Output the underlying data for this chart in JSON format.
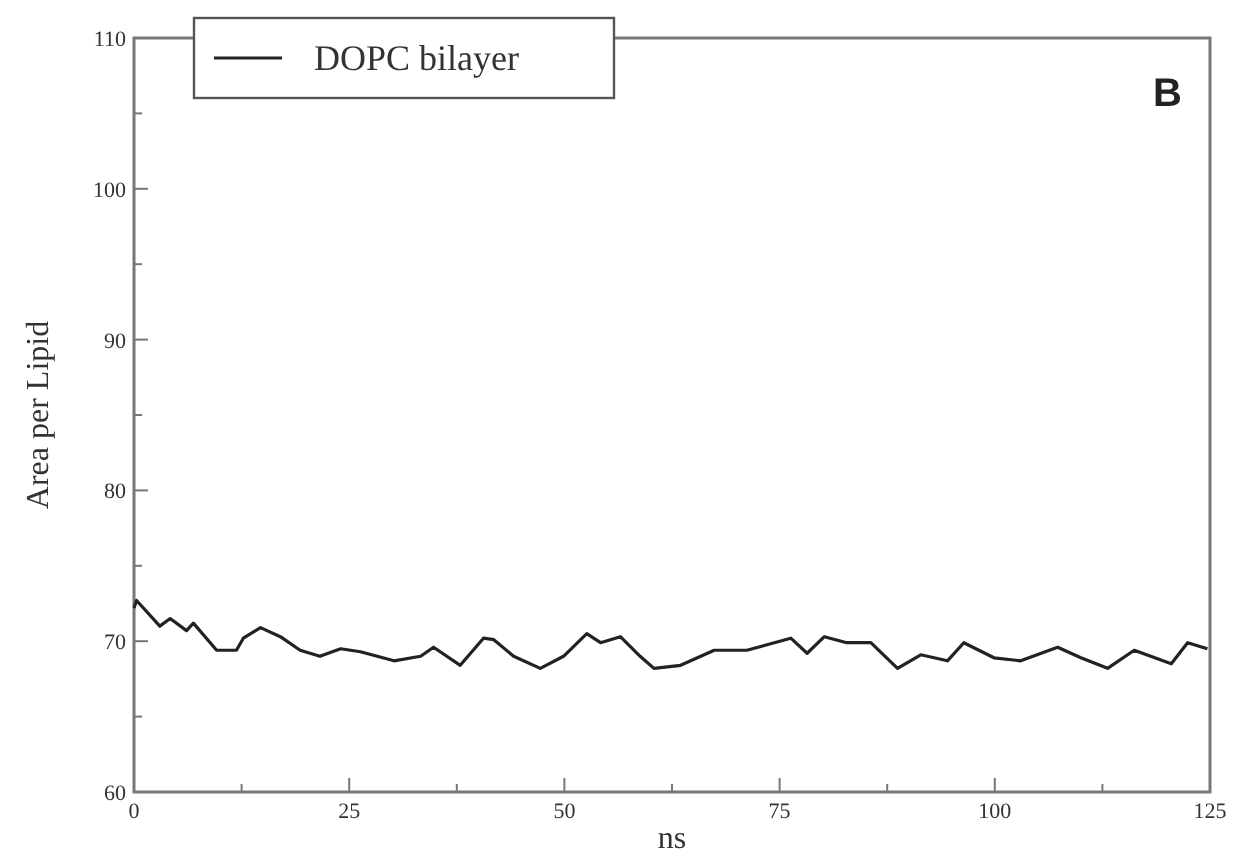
{
  "chart_data": {
    "type": "line",
    "xlabel": "ns",
    "ylabel": "Area per Lipid",
    "annotations": [
      "B"
    ],
    "x": [
      0,
      0.3,
      3,
      4.2,
      6.1,
      6.9,
      9.6,
      11.9,
      12.7,
      14.7,
      17,
      19.3,
      21.6,
      24,
      26.3,
      30.2,
      33.3,
      34.8,
      37.9,
      40.6,
      41.8,
      44.1,
      47.2,
      49.9,
      52.6,
      54.2,
      56.5,
      58.8,
      60.4,
      63.5,
      67.4,
      71.2,
      76.3,
      78.2,
      80.2,
      82.8,
      85.6,
      88.7,
      91.4,
      94.5,
      96.4,
      99.9,
      103,
      107.3,
      110,
      113.1,
      116.2,
      120.5,
      122.4,
      124.7
    ],
    "series": [
      {
        "name": "DOPC bilayer",
        "color": "#222222",
        "values": [
          72.2,
          72.7,
          71.0,
          71.5,
          70.7,
          71.2,
          69.4,
          69.4,
          70.2,
          70.9,
          70.3,
          69.4,
          69.0,
          69.5,
          69.3,
          68.7,
          69.0,
          69.6,
          68.4,
          70.2,
          70.1,
          69.0,
          68.2,
          69.0,
          70.5,
          69.9,
          70.3,
          69.0,
          68.2,
          68.4,
          69.4,
          69.4,
          70.2,
          69.2,
          70.3,
          69.9,
          69.9,
          68.2,
          69.1,
          68.7,
          69.9,
          68.9,
          68.7,
          69.6,
          68.9,
          68.2,
          69.4,
          68.5,
          69.9,
          69.5
        ]
      }
    ],
    "xlim": [
      0,
      125
    ],
    "xticks": [
      0,
      {
        "value": 12.5,
        "label": null
      },
      25,
      {
        "value": 37.5,
        "label": null
      },
      50,
      {
        "value": 62.5,
        "label": null
      },
      75,
      {
        "value": 87.5,
        "label": null
      },
      100,
      {
        "value": 112.5,
        "label": null
      },
      125
    ],
    "ylim": [
      60,
      110
    ],
    "yticks": [
      60,
      {
        "value": 65,
        "label": null
      },
      70,
      {
        "value": 75,
        "label": null
      },
      80,
      {
        "value": 85,
        "label": null
      },
      90,
      {
        "value": 95,
        "label": null
      },
      100,
      {
        "value": 105,
        "label": null
      },
      110
    ],
    "grid": false,
    "legend": "top left",
    "marker": "none",
    "line_style": "solid"
  }
}
